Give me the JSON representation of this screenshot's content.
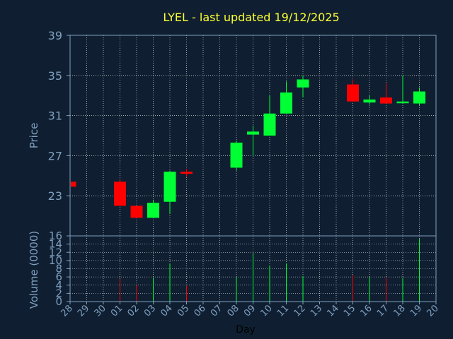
{
  "chart_data": {
    "type": "candlestick",
    "title": "LYEL - last updated 19/12/2025",
    "xlabel": "Day",
    "colors": {
      "background": "#0f1f31",
      "up": "#00ff33",
      "down": "#ff0000",
      "axis": "#7f9fbf",
      "title": "#ffff33",
      "grid": "#ffffff"
    },
    "grid": true,
    "x_ticks": [
      "28",
      "29",
      "30",
      "01",
      "02",
      "03",
      "04",
      "05",
      "06",
      "07",
      "08",
      "09",
      "10",
      "11",
      "12",
      "13",
      "14",
      "15",
      "16",
      "17",
      "18",
      "19",
      "20"
    ],
    "price_panel": {
      "ylabel": "Price",
      "ylim": [
        19,
        39
      ],
      "yticks": [
        "39",
        "35",
        "31",
        "27",
        "23"
      ],
      "ytick_values": [
        39,
        35,
        31,
        27,
        23
      ]
    },
    "volume_panel": {
      "ylabel": "Volume (0000)",
      "ylim": [
        0,
        16
      ],
      "yticks": [
        "16",
        "14",
        "12",
        "10",
        "8",
        "6",
        "4",
        "2",
        "0"
      ],
      "ytick_values": [
        16,
        14,
        12,
        10,
        8,
        6,
        4,
        2,
        0
      ]
    },
    "candles": [
      {
        "day": "28",
        "open": 24.4,
        "high": 24.4,
        "low": 23.9,
        "close": 23.9,
        "volume": 0
      },
      {
        "day": "01",
        "open": 24.4,
        "high": 24.6,
        "low": 22.0,
        "close": 22.0,
        "volume": 5.5
      },
      {
        "day": "02",
        "open": 22.0,
        "high": 22.0,
        "low": 20.8,
        "close": 20.8,
        "volume": 4.0
      },
      {
        "day": "03",
        "open": 20.8,
        "high": 22.6,
        "low": 20.8,
        "close": 22.3,
        "volume": 5.8
      },
      {
        "day": "04",
        "open": 22.4,
        "high": 25.5,
        "low": 21.2,
        "close": 25.4,
        "volume": 9.3
      },
      {
        "day": "05",
        "open": 25.4,
        "high": 25.7,
        "low": 24.9,
        "close": 25.2,
        "volume": 3.8
      },
      {
        "day": "08",
        "open": 25.8,
        "high": 28.5,
        "low": 25.5,
        "close": 28.3,
        "volume": 6.0
      },
      {
        "day": "09",
        "open": 29.1,
        "high": 30.0,
        "low": 27.0,
        "close": 29.4,
        "volume": 11.7
      },
      {
        "day": "10",
        "open": 29.0,
        "high": 33.0,
        "low": 29.0,
        "close": 31.2,
        "volume": 8.8
      },
      {
        "day": "11",
        "open": 31.2,
        "high": 34.4,
        "low": 31.2,
        "close": 33.3,
        "volume": 9.3
      },
      {
        "day": "12",
        "open": 33.8,
        "high": 35.0,
        "low": 32.8,
        "close": 34.6,
        "volume": 6.2
      },
      {
        "day": "15",
        "open": 34.1,
        "high": 34.6,
        "low": 32.4,
        "close": 32.4,
        "volume": 6.5
      },
      {
        "day": "16",
        "open": 32.3,
        "high": 33.0,
        "low": 32.1,
        "close": 32.6,
        "volume": 6.0
      },
      {
        "day": "17",
        "open": 32.8,
        "high": 34.2,
        "low": 32.2,
        "close": 32.2,
        "volume": 5.8
      },
      {
        "day": "18",
        "open": 32.3,
        "high": 35.0,
        "low": 32.3,
        "close": 32.4,
        "volume": 5.8
      },
      {
        "day": "19",
        "open": 32.2,
        "high": 33.8,
        "low": 32.0,
        "close": 33.4,
        "volume": 15.3
      }
    ]
  }
}
